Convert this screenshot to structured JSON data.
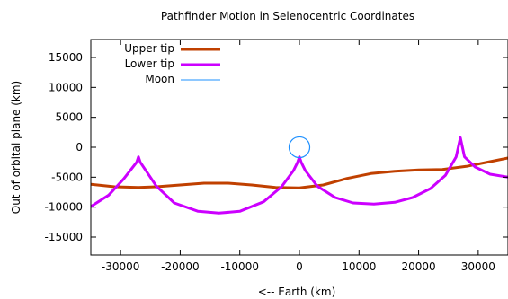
{
  "chart_data": {
    "type": "line",
    "title": "Pathfinder Motion in Selenocentric Coordinates",
    "xlabel": "<-- Earth (km)",
    "ylabel": "Out of orbital plane (km)",
    "xlim": [
      -35000,
      35000
    ],
    "ylim": [
      -18000,
      18000
    ],
    "xticks": [
      -30000,
      -20000,
      -10000,
      0,
      10000,
      20000,
      30000
    ],
    "yticks": [
      -15000,
      -10000,
      -5000,
      0,
      5000,
      10000,
      15000
    ],
    "grid": false,
    "legend_position": "top-left",
    "series": [
      {
        "name": "Upper tip",
        "color": "#c04000",
        "x": [
          -35000,
          -31000,
          -27000,
          -24000,
          -20000,
          -16000,
          -12000,
          -8000,
          -4000,
          0,
          4000,
          8000,
          12000,
          16000,
          20000,
          24000,
          28000,
          32000,
          35000
        ],
        "y": [
          -6200,
          -6600,
          -6700,
          -6600,
          -6300,
          -6000,
          -6000,
          -6300,
          -6700,
          -6800,
          -6300,
          -5200,
          -4400,
          -4000,
          -3800,
          -3700,
          -3200,
          -2400,
          -1800
        ]
      },
      {
        "name": "Lower tip",
        "color": "#cc00ff",
        "x": [
          -35000,
          -32000,
          -29500,
          -27300,
          -27000,
          -26700,
          -24000,
          -21000,
          -17000,
          -13500,
          -10000,
          -6000,
          -3000,
          -1000,
          -300,
          0,
          300,
          1000,
          3000,
          6000,
          9000,
          12500,
          16000,
          19000,
          22000,
          24500,
          26300,
          27000,
          27700,
          29500,
          32000,
          35000
        ],
        "y": [
          -9900,
          -8000,
          -5300,
          -2500,
          -1600,
          -2500,
          -6500,
          -9300,
          -10700,
          -11000,
          -10700,
          -9100,
          -6600,
          -3900,
          -2500,
          -1600,
          -2500,
          -3900,
          -6500,
          -8400,
          -9300,
          -9500,
          -9200,
          -8400,
          -6900,
          -4700,
          -1600,
          1600,
          -1600,
          -3300,
          -4500,
          -5000
        ]
      },
      {
        "name": "Moon",
        "color": "#1e90ff",
        "center": [
          0,
          0
        ],
        "radius": 1737
      }
    ]
  }
}
